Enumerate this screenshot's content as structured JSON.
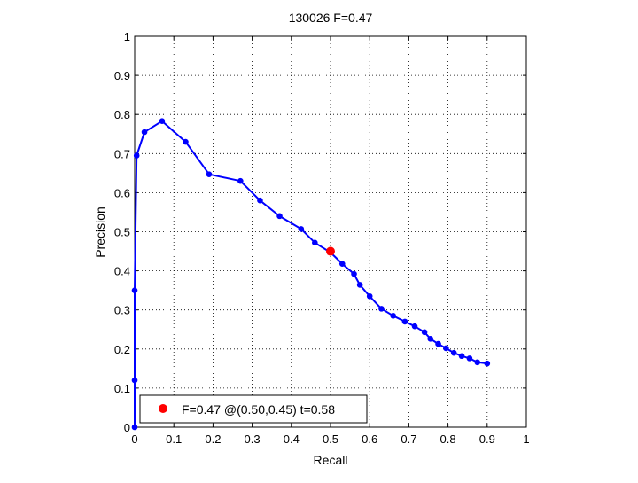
{
  "chart_data": {
    "type": "line",
    "title": "130026 F=0.47",
    "xlabel": "Recall",
    "ylabel": "Precision",
    "xlim": [
      0,
      1
    ],
    "ylim": [
      0,
      1
    ],
    "xticks": [
      "0",
      "0.1",
      "0.2",
      "0.3",
      "0.4",
      "0.5",
      "0.6",
      "0.7",
      "0.8",
      "0.9",
      "1"
    ],
    "yticks": [
      "0",
      "0.1",
      "0.2",
      "0.3",
      "0.4",
      "0.5",
      "0.6",
      "0.7",
      "0.8",
      "0.9",
      "1"
    ],
    "grid": true,
    "legend_position": "bottom-left",
    "series": [
      {
        "color": "#0000ff",
        "marker": "dot",
        "x": [
          0.0,
          0.0,
          0.0,
          0.005,
          0.025,
          0.07,
          0.13,
          0.19,
          0.27,
          0.32,
          0.37,
          0.425,
          0.46,
          0.5,
          0.53,
          0.56,
          0.575,
          0.6,
          0.63,
          0.66,
          0.69,
          0.715,
          0.74,
          0.755,
          0.775,
          0.795,
          0.815,
          0.835,
          0.855,
          0.875,
          0.9
        ],
        "y": [
          0.0,
          0.12,
          0.35,
          0.695,
          0.755,
          0.783,
          0.73,
          0.647,
          0.63,
          0.58,
          0.54,
          0.507,
          0.472,
          0.447,
          0.418,
          0.392,
          0.364,
          0.335,
          0.303,
          0.285,
          0.27,
          0.258,
          0.243,
          0.226,
          0.213,
          0.202,
          0.19,
          0.182,
          0.176,
          0.166,
          0.163
        ]
      }
    ],
    "best_point": {
      "x": 0.5,
      "y": 0.45,
      "color": "#ff0000"
    },
    "legend": {
      "label": "F=0.47 @(0.50,0.45) t=0.58",
      "color": "#ff0000"
    }
  }
}
